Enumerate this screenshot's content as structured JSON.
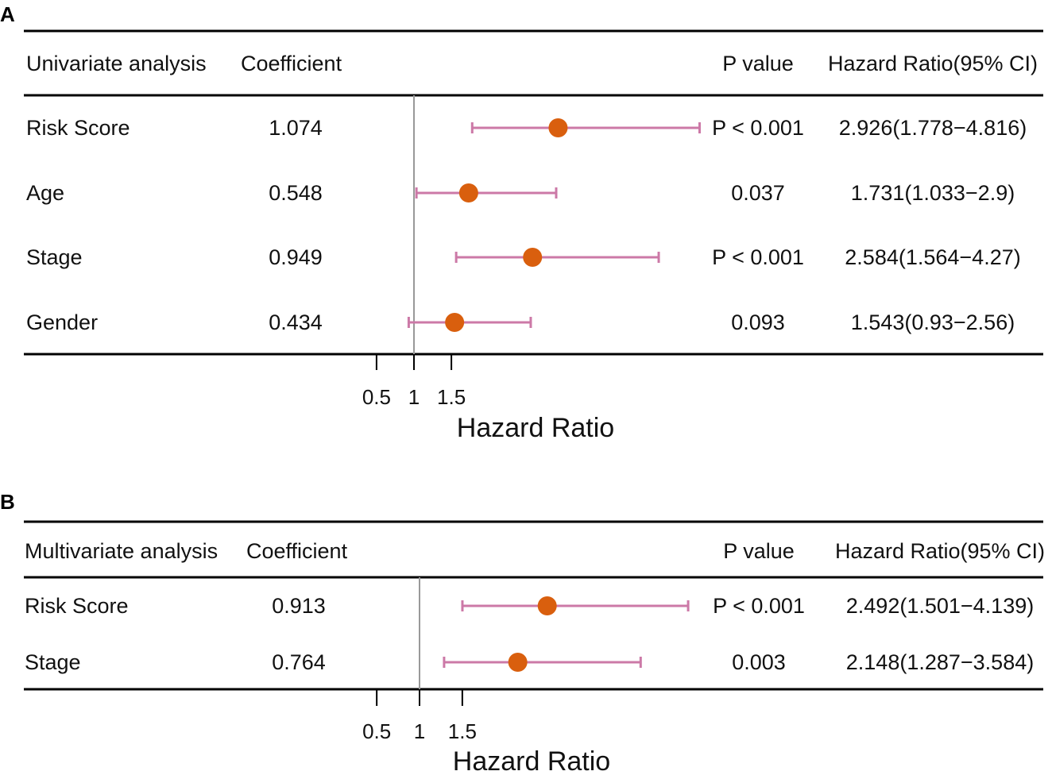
{
  "colors": {
    "point": "#D95F0E",
    "ci": "#CC79A7",
    "ref_line": "#999999",
    "rule": "#000000"
  },
  "chart_data": [
    {
      "type": "forest",
      "panel": "A",
      "columns": {
        "analysis": "Univariate analysis",
        "coef": "Coefficient",
        "pvalue": "P value",
        "hr": "Hazard Ratio(95% CI)"
      },
      "rows": [
        {
          "name": "Risk Score",
          "coef": "1.074",
          "p": "P < 0.001",
          "hr_text": "2.926(1.778−4.816)",
          "hr": 2.926,
          "lo": 1.778,
          "hi": 4.816
        },
        {
          "name": "Age",
          "coef": "0.548",
          "p": "0.037",
          "hr_text": "1.731(1.033−2.9)",
          "hr": 1.731,
          "lo": 1.033,
          "hi": 2.9
        },
        {
          "name": "Stage",
          "coef": "0.949",
          "p": "P < 0.001",
          "hr_text": "2.584(1.564−4.27)",
          "hr": 2.584,
          "lo": 1.564,
          "hi": 4.27
        },
        {
          "name": "Gender",
          "coef": "0.434",
          "p": "0.093",
          "hr_text": "1.543(0.93−2.56)",
          "hr": 1.543,
          "lo": 0.93,
          "hi": 2.56
        }
      ],
      "ref_value": 1,
      "ticks": [
        0.5,
        1,
        1.5
      ],
      "tick_labels": [
        "0.5",
        "1",
        "1.5"
      ],
      "xlabel": "Hazard Ratio"
    },
    {
      "type": "forest",
      "panel": "B",
      "columns": {
        "analysis": "Multivariate analysis",
        "coef": "Coefficient",
        "pvalue": "P value",
        "hr": "Hazard Ratio(95% CI)"
      },
      "rows": [
        {
          "name": "Risk Score",
          "coef": "0.913",
          "p": "P < 0.001",
          "hr_text": "2.492(1.501−4.139)",
          "hr": 2.492,
          "lo": 1.501,
          "hi": 4.139
        },
        {
          "name": "Stage",
          "coef": "0.764",
          "p": "0.003",
          "hr_text": "2.148(1.287−3.584)",
          "hr": 2.148,
          "lo": 1.287,
          "hi": 3.584
        }
      ],
      "ref_value": 1,
      "ticks": [
        0.5,
        1,
        1.5
      ],
      "tick_labels": [
        "0.5",
        "1",
        "1.5"
      ],
      "xlabel": "Hazard Ratio"
    }
  ]
}
